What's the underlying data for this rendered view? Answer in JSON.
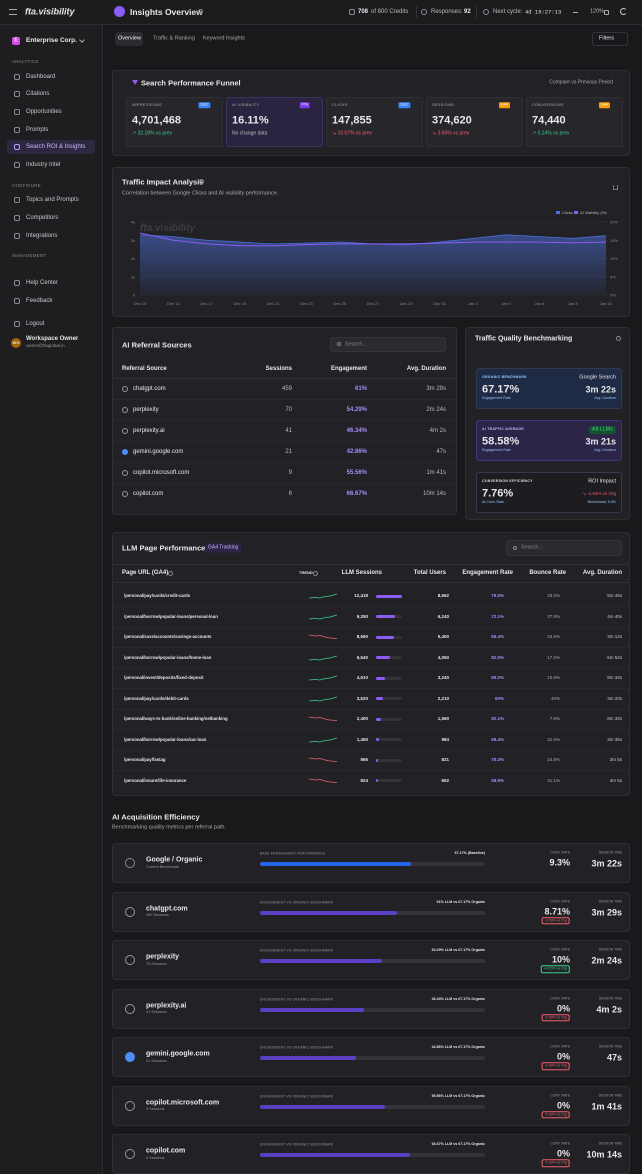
{
  "topbar": {
    "logo": "fta.visibility",
    "title": "Insights Overview",
    "credits_used": "708",
    "credits_rest": "of 800 Credits",
    "responses_label": "Responses:",
    "responses": "92",
    "next_cycle_label": "Next cycle:",
    "next_cycle": "4d 15:27:13",
    "zoom": "120%"
  },
  "tabs": [
    "Overview",
    "Traffic & Ranking",
    "Keyword Insights"
  ],
  "filters": "Filters",
  "sidebar": {
    "org_initial": "E",
    "org": "Enterprise Corp.",
    "sections": [
      {
        "title": "ANALYTICS",
        "items": [
          "Dashboard",
          "Citations",
          "Opportunities",
          "Prompts",
          "Search ROI & Insights",
          "Industry Intel"
        ]
      },
      {
        "title": "CONFIGURE",
        "items": [
          "Topics and Prompts",
          "Competitors",
          "Integrations"
        ]
      },
      {
        "title": "MANAGEMENT",
        "items": [
          "Help Center",
          "Feedback"
        ]
      }
    ],
    "active": "Search ROI & Insights",
    "logout": "Logout",
    "user": {
      "initials": "WO",
      "name": "Workspace Owner",
      "email": "owner@ftaglobal.in"
    }
  },
  "funnel": {
    "title": "Search Performance Funnel",
    "compare": "Compare vs Previous Period",
    "cards": [
      {
        "label": "IMPRESSIONS",
        "source": "GSC",
        "value": "4,701,468",
        "change": "↗ 32.18% vs prev",
        "trend": "up"
      },
      {
        "label": "AI VISIBILITY",
        "source": "FTA",
        "value": "16.11%",
        "change": "No change data",
        "trend": "none"
      },
      {
        "label": "CLICKS",
        "source": "GSC",
        "value": "147,855",
        "change": "↘ 10.07% vs prev",
        "trend": "down"
      },
      {
        "label": "SESSIONS",
        "source": "GA4",
        "value": "374,620",
        "change": "↘ 3.65% vs prev",
        "trend": "down"
      },
      {
        "label": "CONVERSIONS",
        "source": "GA4",
        "value": "74,440",
        "change": "↗ 0.24% vs prev",
        "trend": "up"
      }
    ]
  },
  "chart_data": {
    "type": "area",
    "title": "Traffic Impact Analysis",
    "subtitle": "Correlation between Google Clicks and AI visibility performance.",
    "categories": [
      "Dec 10",
      "Dec 13",
      "Dec 17",
      "Dec 19",
      "Dec 21",
      "Dec 23",
      "Dec 25",
      "Dec 27",
      "Dec 29",
      "Dec 31",
      "Jan 2",
      "Jan 4",
      "Jan 6",
      "Jan 8",
      "Jan 10"
    ],
    "series": [
      {
        "name": "Clicks",
        "color": "#4a6fd8",
        "values": [
          3300,
          3200,
          3000,
          2900,
          2800,
          2850,
          2900,
          2800,
          2750,
          2900,
          3100,
          3300,
          3200,
          3100,
          3250
        ]
      },
      {
        "name": "AI Visibility (%)",
        "color": "#8b5cf6",
        "axis": "y2",
        "values": [
          17,
          15,
          14,
          13.5,
          13.5,
          13.8,
          14,
          14,
          14,
          14.2,
          14.5,
          14.5,
          14.5,
          14.3,
          14.5
        ]
      }
    ],
    "ylim": [
      0,
      4000
    ],
    "yticks": [
      0,
      {
        "value": 1000,
        "label": "1k"
      },
      {
        "value": 2000,
        "label": "2k"
      },
      {
        "value": 3000,
        "label": "3k"
      },
      {
        "value": 4000,
        "label": "4k"
      }
    ],
    "y2lim": [
      0,
      20
    ],
    "y2ticks": [
      {
        "value": 0,
        "label": "0%"
      },
      {
        "value": 5,
        "label": "5%"
      },
      {
        "value": 10,
        "label": "10%"
      },
      {
        "value": 15,
        "label": "15%"
      },
      {
        "value": 20,
        "label": "20%"
      }
    ],
    "grid": true,
    "legend": "top-right"
  },
  "referral": {
    "title": "AI Referral Sources",
    "search": "Search...",
    "headers": [
      "Referral Source",
      "Sessions",
      "Engagement",
      "Avg. Duration"
    ],
    "rows": [
      [
        "chatgpt.com",
        "459",
        "61%",
        "3m 29s"
      ],
      [
        "perplexity",
        "70",
        "54.29%",
        "2m 24s"
      ],
      [
        "perplexity.ai",
        "41",
        "46.34%",
        "4m 2s"
      ],
      [
        "gemini.google.com",
        "21",
        "42.86%",
        "47s"
      ],
      [
        "copilot.microsoft.com",
        "9",
        "55.56%",
        "1m 41s"
      ],
      [
        "copilot.com",
        "6",
        "66.67%",
        "10m 14s"
      ]
    ]
  },
  "quality": {
    "title": "Traffic Quality Benchmarking",
    "cards": [
      {
        "label": "ORGANIC BENCHMARK",
        "value": "67.17%",
        "sub": "Engagement Rate",
        "name": "Google Search",
        "right": "3m 22s",
        "right_sub": "Avg. Duration"
      },
      {
        "label": "AI TRAFFIC AVERAGE",
        "value": "58.58%",
        "sub": "Engagement Rate",
        "name": "All LLMs",
        "right": "3m 21s",
        "right_sub": "Avg. Duration"
      },
      {
        "label": "CONVERSION EFFICIENCY",
        "value": "7.76%",
        "sub": "AI Conv. Rate",
        "name": "ROI Impact",
        "right": "↘ -1.54% vs Org",
        "right_sub": "Benchmark: 9.3%"
      }
    ]
  },
  "llm": {
    "title": "LLM Page Performance",
    "badge": "GA4 Tracking",
    "search": "Search...",
    "headers": [
      "Page URL (GA4)",
      "TREND",
      "LLM Sessions",
      "Total Users",
      "Engagement Rate",
      "Bounce Rate",
      "Avg. Duration"
    ],
    "rows": [
      {
        "url": "/personal/pay/cards/credit-cards",
        "trend": "up",
        "sessions": 12418,
        "sessions_label": "12,418",
        "users": "8,562",
        "engagement": "76.5%",
        "bounce": "25.5%",
        "duration": "5m 45s"
      },
      {
        "url": "/personal/borrow/popular-loans/personal-loan",
        "trend": "up",
        "sessions": 9250,
        "sessions_label": "9,250",
        "users": "6,240",
        "engagement": "72.1%",
        "bounce": "27.9%",
        "duration": "4m 40s"
      },
      {
        "url": "/personal/save/accounts/savings-accounts",
        "trend": "down",
        "sessions": 8560,
        "sessions_label": "8,560",
        "users": "5,400",
        "engagement": "65.4%",
        "bounce": "34.6%",
        "duration": "3m 12s"
      },
      {
        "url": "/personal/borrow/popular-loans/home-loan",
        "trend": "up",
        "sessions": 6540,
        "sessions_label": "6,540",
        "users": "4,050",
        "engagement": "82.5%",
        "bounce": "17.5%",
        "duration": "6m 52s"
      },
      {
        "url": "/personal/invest/deposits/fixed-deposit",
        "trend": "up",
        "sessions": 4510,
        "sessions_label": "4,510",
        "users": "3,240",
        "engagement": "89.2%",
        "bounce": "10.8%",
        "duration": "8m 34s"
      },
      {
        "url": "/personal/pay/cards/debit-cards",
        "trend": "up",
        "sessions": 3520,
        "sessions_label": "3,520",
        "users": "2,210",
        "engagement": "60%",
        "bounce": "40%",
        "duration": "3m 20s"
      },
      {
        "url": "/personal/ways-to-bank/online-banking/netbanking",
        "trend": "down",
        "sessions": 2400,
        "sessions_label": "2,400",
        "users": "1,560",
        "engagement": "92.1%",
        "bounce": "7.9%",
        "duration": "8m 32s"
      },
      {
        "url": "/personal/borrow/popular-loans/car-loan",
        "trend": "up",
        "sessions": 1450,
        "sessions_label": "1,450",
        "users": "984",
        "engagement": "68.4%",
        "bounce": "31.6%",
        "duration": "3m 35s"
      },
      {
        "url": "/personal/pay/fastag",
        "trend": "down",
        "sessions": 865,
        "sessions_label": "865",
        "users": "821",
        "engagement": "75.2%",
        "bounce": "24.8%",
        "duration": "3m 5s"
      },
      {
        "url": "/personal/insure/life-insurance",
        "trend": "down",
        "sessions": 824,
        "sessions_label": "824",
        "users": "652",
        "engagement": "58.9%",
        "bounce": "41.1%",
        "duration": "4m 5s"
      }
    ]
  },
  "acquisition": {
    "title": "AI Acquisition Efficiency",
    "subtitle": "Benchmarking quality metrics per referral path.",
    "conv_label": "CONV. RATE",
    "time_label": "SESSION TIME",
    "rows": [
      {
        "name": "Google / Organic",
        "sub": "Current Benchmark",
        "bar_label": "BASE ENGAGEMENT PERFORMANCE",
        "engagement": 67.17,
        "compare": "67.17% (Baseline)",
        "conv": "9.3%",
        "time": "3m 22s"
      },
      {
        "name": "chatgpt.com",
        "sub": "459 Sessions",
        "bar_label": "ENGAGEMENT VS ORGANIC BENCHMARK",
        "engagement": 61,
        "compare": "61% LLM vs 67.17% Organic",
        "conv": "8.71%",
        "badge": "-0.59% vs Org",
        "badge_trend": "down",
        "time": "3m 29s"
      },
      {
        "name": "perplexity",
        "sub": "70 Sessions",
        "bar_label": "ENGAGEMENT VS ORGANIC BENCHMARK",
        "engagement": 54.29,
        "compare": "54.29% LLM vs 67.17% Organic",
        "conv": "10%",
        "badge": "+0.70% vs Org",
        "badge_trend": "up",
        "time": "2m 24s"
      },
      {
        "name": "perplexity.ai",
        "sub": "41 Sessions",
        "bar_label": "ENGAGEMENT VS ORGANIC BENCHMARK",
        "engagement": 46.34,
        "compare": "46.34% LLM vs 67.17% Organic",
        "conv": "0%",
        "badge": "-9.30% vs Org",
        "badge_trend": "down",
        "time": "4m 2s"
      },
      {
        "name": "gemini.google.com",
        "sub": "21 Sessions",
        "bar_label": "ENGAGEMENT VS ORGANIC BENCHMARK",
        "engagement": 42.86,
        "compare": "42.86% LLM vs 67.17% Organic",
        "conv": "0%",
        "badge": "-9.30% vs Org",
        "badge_trend": "down",
        "time": "47s"
      },
      {
        "name": "copilot.microsoft.com",
        "sub": "9 Sessions",
        "bar_label": "ENGAGEMENT VS ORGANIC BENCHMARK",
        "engagement": 55.56,
        "compare": "55.56% LLM vs 67.17% Organic",
        "conv": "0%",
        "badge": "-9.30% vs Org",
        "badge_trend": "down",
        "time": "1m 41s"
      },
      {
        "name": "copilot.com",
        "sub": "6 Sessions",
        "bar_label": "ENGAGEMENT VS ORGANIC BENCHMARK",
        "engagement": 66.67,
        "compare": "66.67% LLM vs 67.17% Organic",
        "conv": "0%",
        "badge": "-9.30% vs Org",
        "badge_trend": "down",
        "time": "10m 14s"
      }
    ]
  }
}
